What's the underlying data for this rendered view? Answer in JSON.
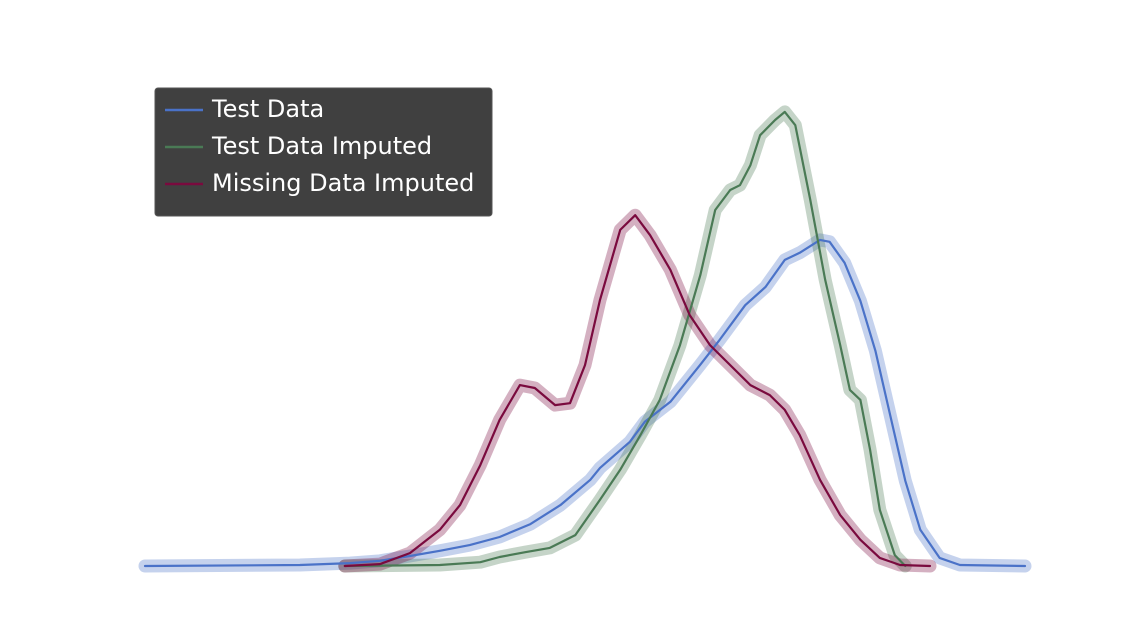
{
  "chart_data": {
    "type": "line",
    "xlim": [
      0,
      100
    ],
    "ylim": [
      0,
      100
    ],
    "legend": "upper left",
    "series": [
      {
        "name": "Test Data",
        "color": "#4a72c8",
        "x": [
          0,
          17.6,
          23.3,
          26.7,
          30.1,
          33.5,
          36.9,
          40.3,
          43.8,
          47.2,
          50.6,
          51.7,
          55.1,
          56.8,
          59.7,
          63.1,
          65.3,
          68.2,
          70.5,
          72.7,
          74.4,
          76.7,
          77.8,
          79.5,
          81.3,
          83.0,
          84.7,
          86.4,
          88.1,
          90.3,
          92.6,
          100
        ],
        "values": [
          0,
          0.2,
          0.6,
          1.1,
          2.1,
          3.2,
          4.4,
          6.1,
          8.8,
          12.8,
          18.1,
          20.6,
          26.1,
          30.3,
          34.5,
          42.3,
          47.5,
          54.8,
          58.6,
          64.3,
          65.8,
          68.5,
          68.1,
          63.7,
          55.7,
          45.2,
          31.5,
          17.9,
          7.6,
          1.7,
          0.2,
          0
        ]
      },
      {
        "name": "Test Data Imputed",
        "color": "#4a7a55",
        "x": [
          22.7,
          33.5,
          38.1,
          40.3,
          43.2,
          46.0,
          48.9,
          51.7,
          54.0,
          56.3,
          58.5,
          60.8,
          63.1,
          64.8,
          66.5,
          67.6,
          68.8,
          69.9,
          71.6,
          72.7,
          73.9,
          75.6,
          77.3,
          79.0,
          80.1,
          81.3,
          82.4,
          83.5,
          85.2,
          86.4
        ],
        "values": [
          0,
          0.2,
          0.8,
          1.9,
          2.9,
          3.8,
          6.5,
          13.9,
          20.2,
          27.5,
          34.9,
          46.4,
          61.1,
          74.8,
          79.0,
          80.0,
          84.2,
          90.5,
          93.7,
          95.4,
          92.6,
          76.9,
          60.1,
          46.4,
          37.0,
          34.9,
          24.4,
          11.8,
          2.3,
          0
        ]
      },
      {
        "name": "Missing Data Imputed",
        "color": "#7a0a3e",
        "x": [
          22.7,
          26.7,
          30.1,
          33.5,
          35.8,
          38.1,
          40.3,
          42.6,
          44.3,
          46.6,
          48.3,
          50.0,
          51.7,
          54.0,
          55.7,
          57.4,
          59.7,
          61.9,
          64.2,
          66.5,
          68.8,
          71.0,
          72.7,
          74.4,
          76.7,
          79.0,
          81.3,
          83.5,
          85.8,
          89.2
        ],
        "values": [
          0,
          0.4,
          2.7,
          7.6,
          12.8,
          21.2,
          30.7,
          38.0,
          37.4,
          33.8,
          34.2,
          42.2,
          55.9,
          70.6,
          73.7,
          69.5,
          62.2,
          52.7,
          46.4,
          42.2,
          38.0,
          35.9,
          32.8,
          27.5,
          18.1,
          10.7,
          5.5,
          1.7,
          0.2,
          0
        ]
      }
    ]
  }
}
